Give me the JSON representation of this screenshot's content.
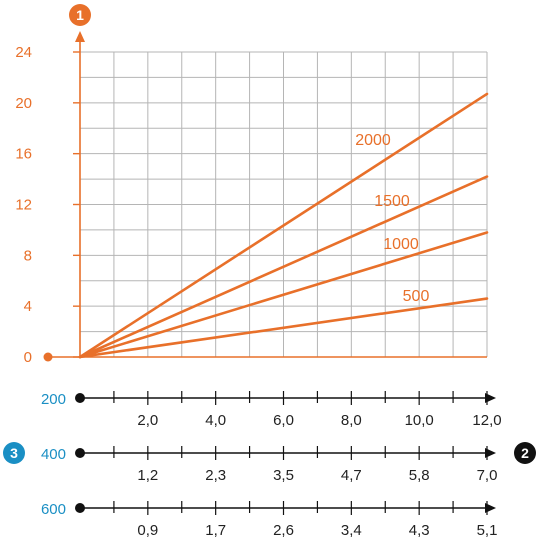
{
  "colors": {
    "accent": "#e8702a",
    "grid": "#b5b5b5",
    "axis_dark": "#111111",
    "row_label": "#1a8fc4",
    "badge_dark": "#111111",
    "badge_blue": "#1a8fc4"
  },
  "badges": {
    "y_axis": "1",
    "x_axis": "2",
    "rows": "3"
  },
  "chart_data": {
    "type": "line",
    "y_axis": {
      "ticks": [
        "0",
        "4",
        "8",
        "12",
        "16",
        "20",
        "24"
      ],
      "range": [
        0,
        24
      ]
    },
    "grid": true,
    "x_grid_columns": 12,
    "series": [
      {
        "name": "500",
        "points": [
          [
            0,
            0
          ],
          [
            12,
            4.6
          ]
        ]
      },
      {
        "name": "1000",
        "points": [
          [
            0,
            0
          ],
          [
            12,
            9.8
          ]
        ]
      },
      {
        "name": "1500",
        "points": [
          [
            0,
            0
          ],
          [
            12,
            14.2
          ]
        ]
      },
      {
        "name": "2000",
        "points": [
          [
            0,
            0
          ],
          [
            12,
            20.7
          ]
        ]
      }
    ],
    "x_axis_rows": [
      {
        "label": "200",
        "ticks": [
          "2,0",
          "4,0",
          "6,0",
          "8,0",
          "10,0",
          "12,0"
        ]
      },
      {
        "label": "400",
        "ticks": [
          "1,2",
          "2,3",
          "3,5",
          "4,7",
          "5,8",
          "7,0"
        ]
      },
      {
        "label": "600",
        "ticks": [
          "0,9",
          "1,7",
          "2,6",
          "3,4",
          "4,3",
          "5,1"
        ]
      }
    ]
  }
}
